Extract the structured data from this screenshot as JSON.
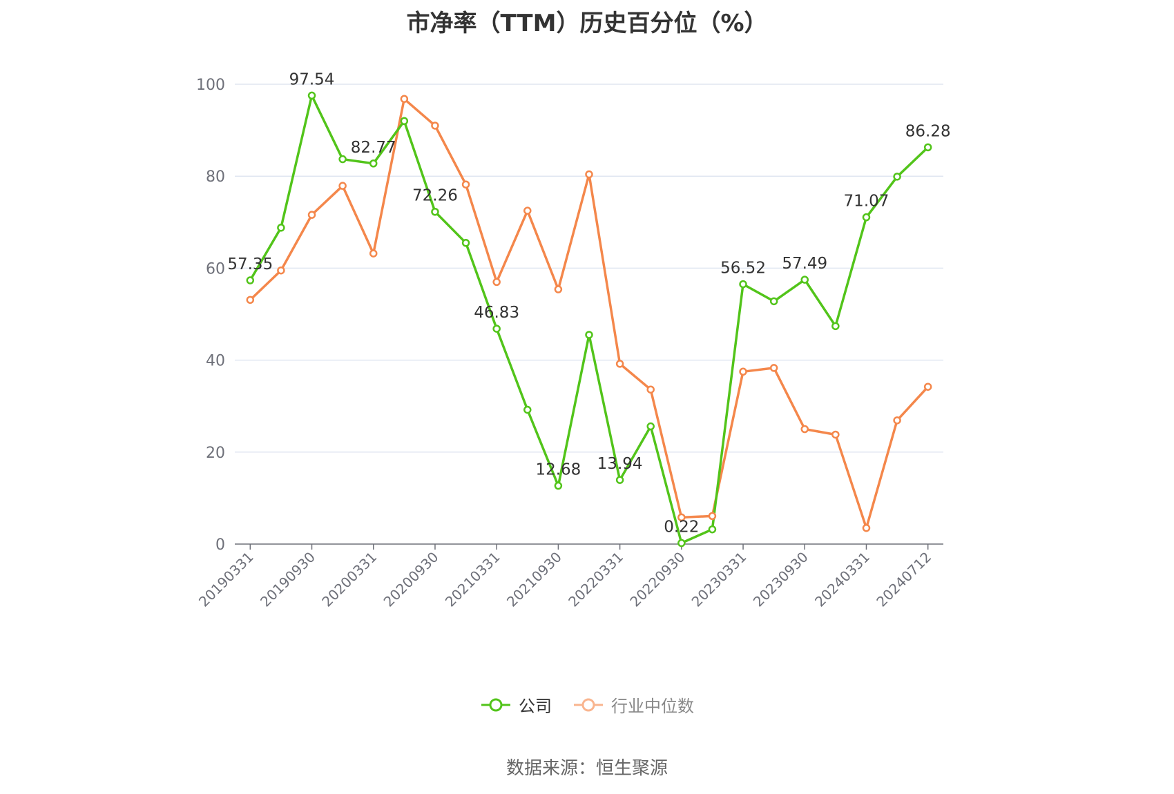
{
  "chart_data": {
    "type": "line",
    "title": "市净率（TTM）历史百分位（%）",
    "xlabel": "",
    "ylabel": "",
    "ylim": [
      0,
      100
    ],
    "y_ticks": [
      0,
      20,
      40,
      60,
      80,
      100
    ],
    "x": [
      "20190331",
      "20190630",
      "20190930",
      "20191231",
      "20200331",
      "20200630",
      "20200930",
      "20201231",
      "20210331",
      "20210630",
      "20210930",
      "20211231",
      "20220331",
      "20220630",
      "20220930",
      "20221231",
      "20230331",
      "20230630",
      "20230930",
      "20231231",
      "20240331",
      "20240630",
      "20240712"
    ],
    "x_tick_labels": [
      "20190331",
      "20190930",
      "20200331",
      "20200930",
      "20210331",
      "20210930",
      "20220331",
      "20220930",
      "20230331",
      "20230930",
      "20240331",
      "20240712"
    ],
    "grid": true,
    "legend_position": "bottom",
    "series": [
      {
        "name": "公司",
        "color": "#52c41a",
        "values": [
          57.35,
          68.8,
          97.54,
          83.7,
          82.77,
          92.0,
          72.26,
          65.5,
          46.83,
          29.2,
          12.68,
          45.5,
          13.94,
          25.6,
          0.22,
          3.2,
          56.52,
          52.8,
          57.49,
          47.4,
          71.07,
          79.9,
          86.28
        ],
        "labels": [
          "57.35",
          "",
          "97.54",
          "",
          "82.77",
          "",
          "72.26",
          "",
          "46.83",
          "",
          "12.68",
          "",
          "13.94",
          "",
          "0.22",
          "",
          "56.52",
          "",
          "57.49",
          "",
          "71.07",
          "",
          "86.28"
        ]
      },
      {
        "name": "行业中位数",
        "color": "#f4874b",
        "values": [
          53.1,
          59.5,
          71.6,
          77.9,
          63.2,
          96.8,
          91.0,
          78.2,
          57.0,
          72.5,
          55.4,
          80.4,
          39.2,
          33.6,
          5.8,
          6.1,
          37.5,
          38.3,
          25.0,
          23.8,
          3.5,
          26.9,
          34.2
        ]
      }
    ]
  },
  "source": "数据来源：恒生聚源"
}
